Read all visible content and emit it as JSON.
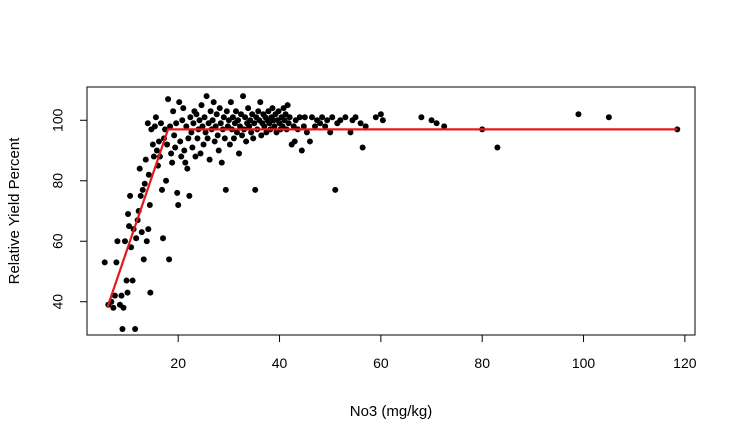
{
  "chart_data": {
    "type": "scatter",
    "title": "",
    "xlabel": "No3 (mg/kg)",
    "ylabel": "Relative Yield Percent",
    "xlim": [
      2,
      122
    ],
    "ylim": [
      29,
      111
    ],
    "xticks": [
      20,
      40,
      60,
      80,
      100,
      120
    ],
    "yticks": [
      40,
      60,
      80,
      100
    ],
    "grid": false,
    "legend": "none",
    "point_color": "#000000",
    "line_color": "#e31a1c",
    "fit_line": {
      "x": [
        6,
        18,
        118.5
      ],
      "y": [
        38,
        97,
        97
      ]
    },
    "points": [
      [
        5.5,
        53
      ],
      [
        6.2,
        39
      ],
      [
        6.8,
        40
      ],
      [
        7.2,
        38
      ],
      [
        7.5,
        42
      ],
      [
        7.8,
        53
      ],
      [
        8.0,
        60
      ],
      [
        8.5,
        39
      ],
      [
        8.8,
        42
      ],
      [
        9.0,
        31
      ],
      [
        9.2,
        38
      ],
      [
        9.5,
        60
      ],
      [
        9.8,
        47
      ],
      [
        10.0,
        43
      ],
      [
        10.1,
        69
      ],
      [
        10.3,
        65
      ],
      [
        10.5,
        75
      ],
      [
        10.7,
        58
      ],
      [
        11.0,
        47
      ],
      [
        11.2,
        64
      ],
      [
        11.5,
        31
      ],
      [
        11.7,
        61
      ],
      [
        12.0,
        67
      ],
      [
        12.2,
        70
      ],
      [
        12.4,
        84
      ],
      [
        12.6,
        75
      ],
      [
        12.8,
        63
      ],
      [
        13.0,
        77
      ],
      [
        13.2,
        54
      ],
      [
        13.4,
        79
      ],
      [
        13.6,
        87
      ],
      [
        13.8,
        60
      ],
      [
        14.0,
        99
      ],
      [
        14.1,
        64
      ],
      [
        14.2,
        82
      ],
      [
        14.4,
        72
      ],
      [
        14.5,
        43
      ],
      [
        14.7,
        97
      ],
      [
        15.0,
        92
      ],
      [
        15.2,
        88
      ],
      [
        15.4,
        98
      ],
      [
        15.6,
        101
      ],
      [
        15.8,
        90
      ],
      [
        16.0,
        85
      ],
      [
        16.2,
        93
      ],
      [
        16.4,
        88
      ],
      [
        16.6,
        99
      ],
      [
        16.8,
        77
      ],
      [
        17.0,
        61
      ],
      [
        17.2,
        94
      ],
      [
        17.4,
        97
      ],
      [
        17.6,
        80
      ],
      [
        17.8,
        92
      ],
      [
        18.0,
        107
      ],
      [
        18.2,
        54
      ],
      [
        18.4,
        98
      ],
      [
        18.6,
        89
      ],
      [
        18.8,
        86
      ],
      [
        19.0,
        103
      ],
      [
        19.2,
        95
      ],
      [
        19.4,
        91
      ],
      [
        19.6,
        99
      ],
      [
        19.8,
        76
      ],
      [
        20.0,
        72
      ],
      [
        20.2,
        106
      ],
      [
        20.4,
        93
      ],
      [
        20.6,
        88
      ],
      [
        20.8,
        100
      ],
      [
        21.0,
        104
      ],
      [
        21.2,
        90
      ],
      [
        21.4,
        86
      ],
      [
        21.6,
        98
      ],
      [
        21.8,
        84
      ],
      [
        22.0,
        94
      ],
      [
        22.2,
        75
      ],
      [
        22.4,
        101
      ],
      [
        22.6,
        96
      ],
      [
        22.8,
        91
      ],
      [
        23.0,
        99
      ],
      [
        23.2,
        103
      ],
      [
        23.4,
        88
      ],
      [
        23.6,
        102
      ],
      [
        23.8,
        94
      ],
      [
        24.0,
        97
      ],
      [
        24.2,
        100
      ],
      [
        24.4,
        89
      ],
      [
        24.6,
        105
      ],
      [
        24.8,
        98
      ],
      [
        25.0,
        92
      ],
      [
        25.2,
        101
      ],
      [
        25.4,
        96
      ],
      [
        25.6,
        108
      ],
      [
        25.8,
        94
      ],
      [
        26.0,
        99
      ],
      [
        26.2,
        87
      ],
      [
        26.4,
        103
      ],
      [
        26.6,
        97
      ],
      [
        26.8,
        100
      ],
      [
        27.0,
        106
      ],
      [
        27.2,
        93
      ],
      [
        27.4,
        98
      ],
      [
        27.6,
        102
      ],
      [
        27.8,
        95
      ],
      [
        28.0,
        90
      ],
      [
        28.2,
        104
      ],
      [
        28.4,
        99
      ],
      [
        28.6,
        86
      ],
      [
        28.8,
        97
      ],
      [
        29.0,
        101
      ],
      [
        29.2,
        94
      ],
      [
        29.4,
        77
      ],
      [
        29.6,
        103
      ],
      [
        29.8,
        98
      ],
      [
        30.0,
        100
      ],
      [
        30.2,
        92
      ],
      [
        30.4,
        106
      ],
      [
        30.6,
        97
      ],
      [
        30.8,
        101
      ],
      [
        31.0,
        94
      ],
      [
        31.2,
        99
      ],
      [
        31.4,
        103
      ],
      [
        31.6,
        96
      ],
      [
        31.8,
        100
      ],
      [
        32.0,
        89
      ],
      [
        32.2,
        98
      ],
      [
        32.4,
        102
      ],
      [
        32.6,
        95
      ],
      [
        32.8,
        108
      ],
      [
        33.0,
        97
      ],
      [
        33.2,
        101
      ],
      [
        33.4,
        93
      ],
      [
        33.6,
        99
      ],
      [
        33.8,
        104
      ],
      [
        34.0,
        98
      ],
      [
        34.2,
        100
      ],
      [
        34.4,
        96
      ],
      [
        34.6,
        102
      ],
      [
        34.8,
        94
      ],
      [
        35.0,
        99
      ],
      [
        35.2,
        77
      ],
      [
        35.4,
        101
      ],
      [
        35.6,
        97
      ],
      [
        35.8,
        103
      ],
      [
        36.0,
        100
      ],
      [
        36.2,
        106
      ],
      [
        36.4,
        95
      ],
      [
        36.6,
        99
      ],
      [
        36.8,
        102
      ],
      [
        37.0,
        98
      ],
      [
        37.2,
        101
      ],
      [
        37.4,
        96
      ],
      [
        37.6,
        100
      ],
      [
        37.8,
        103
      ],
      [
        38.0,
        99
      ],
      [
        38.2,
        97
      ],
      [
        38.4,
        101
      ],
      [
        38.6,
        104
      ],
      [
        38.8,
        100
      ],
      [
        39.0,
        98
      ],
      [
        39.2,
        102
      ],
      [
        39.4,
        96
      ],
      [
        39.6,
        100
      ],
      [
        39.8,
        103
      ],
      [
        40.0,
        99
      ],
      [
        40.2,
        97
      ],
      [
        40.4,
        101
      ],
      [
        40.6,
        98
      ],
      [
        40.8,
        104
      ],
      [
        41.0,
        100
      ],
      [
        41.2,
        102
      ],
      [
        41.4,
        97
      ],
      [
        41.6,
        105
      ],
      [
        41.8,
        99
      ],
      [
        42.0,
        101
      ],
      [
        42.4,
        92
      ],
      [
        42.8,
        98
      ],
      [
        43.0,
        93
      ],
      [
        43.2,
        100
      ],
      [
        43.6,
        97
      ],
      [
        44.0,
        101
      ],
      [
        44.4,
        90
      ],
      [
        44.8,
        98
      ],
      [
        45.0,
        101
      ],
      [
        45.4,
        96
      ],
      [
        46.0,
        93
      ],
      [
        46.4,
        101
      ],
      [
        47.0,
        98
      ],
      [
        47.4,
        100
      ],
      [
        48.0,
        99
      ],
      [
        48.4,
        101
      ],
      [
        49.0,
        98
      ],
      [
        49.4,
        100
      ],
      [
        50.0,
        96
      ],
      [
        50.4,
        101
      ],
      [
        51.0,
        77
      ],
      [
        51.4,
        99
      ],
      [
        52.0,
        100
      ],
      [
        53.0,
        101
      ],
      [
        54.0,
        96
      ],
      [
        54.4,
        100
      ],
      [
        55.0,
        101
      ],
      [
        56.0,
        99
      ],
      [
        56.4,
        91
      ],
      [
        57.0,
        98
      ],
      [
        59.0,
        101
      ],
      [
        60.0,
        102
      ],
      [
        60.4,
        100
      ],
      [
        68.0,
        101
      ],
      [
        70.0,
        100
      ],
      [
        71.0,
        99
      ],
      [
        72.5,
        98
      ],
      [
        80.0,
        97
      ],
      [
        83.0,
        91
      ],
      [
        99.0,
        102
      ],
      [
        105.0,
        101
      ],
      [
        118.5,
        97
      ]
    ]
  }
}
